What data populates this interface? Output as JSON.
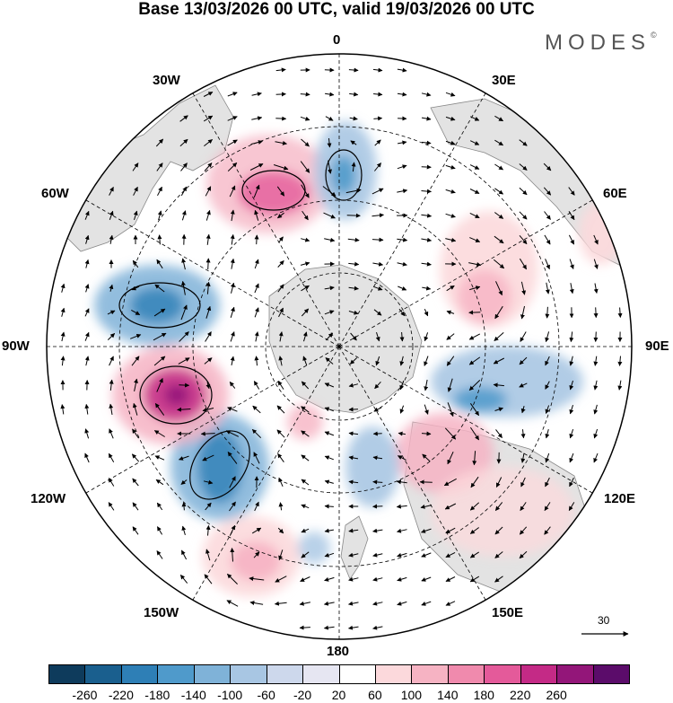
{
  "title": "Base 13/03/2026 00 UTC, valid 19/03/2026 00 UTC",
  "logo": "MODES",
  "logo_mark": "©",
  "longitude_labels": {
    "lon_0": "0",
    "lon_30e": "30E",
    "lon_60e": "60E",
    "lon_90e": "90E",
    "lon_120e": "120E",
    "lon_150e": "150E",
    "lon_180": "180",
    "lon_150w": "150W",
    "lon_120w": "120W",
    "lon_90w": "90W",
    "lon_60w": "60W",
    "lon_30w": "30W"
  },
  "reference_vector": {
    "label": "30"
  },
  "colorbar": {
    "ticks": [
      "-260",
      "-220",
      "-180",
      "-140",
      "-100",
      "-60",
      "-20",
      "20",
      "60",
      "100",
      "140",
      "180",
      "220",
      "260"
    ],
    "colors": [
      "#0e3b5c",
      "#1a5f8e",
      "#2e7fb6",
      "#4f9acb",
      "#7fb2d8",
      "#a8c6e3",
      "#cdd8ec",
      "#e6e6f2",
      "#ffffff",
      "#fcd9dc",
      "#f6b3c3",
      "#f08aad",
      "#e45a9a",
      "#c42a86",
      "#931679",
      "#5b0c6a"
    ]
  },
  "colors": {
    "land": "#e3e3e3",
    "coast": "#888888",
    "grid": "#000000",
    "arrow": "#000000"
  }
}
